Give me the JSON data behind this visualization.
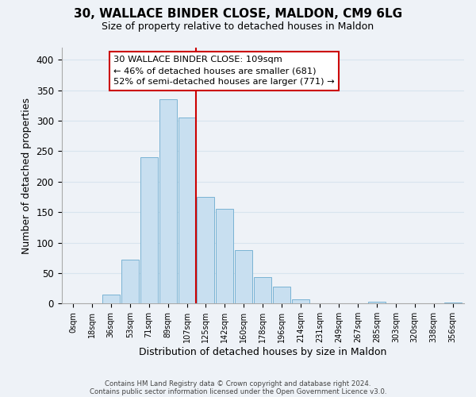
{
  "title": "30, WALLACE BINDER CLOSE, MALDON, CM9 6LG",
  "subtitle": "Size of property relative to detached houses in Maldon",
  "xlabel": "Distribution of detached houses by size in Maldon",
  "ylabel": "Number of detached properties",
  "bar_color": "#c8dff0",
  "bar_edge_color": "#7ab3d4",
  "categories": [
    "0sqm",
    "18sqm",
    "36sqm",
    "53sqm",
    "71sqm",
    "89sqm",
    "107sqm",
    "125sqm",
    "142sqm",
    "160sqm",
    "178sqm",
    "196sqm",
    "214sqm",
    "231sqm",
    "249sqm",
    "267sqm",
    "285sqm",
    "303sqm",
    "320sqm",
    "338sqm",
    "356sqm"
  ],
  "values": [
    0,
    0,
    15,
    72,
    240,
    335,
    305,
    175,
    155,
    88,
    44,
    28,
    7,
    0,
    0,
    0,
    3,
    0,
    0,
    0,
    2
  ],
  "ylim": [
    0,
    420
  ],
  "yticks": [
    0,
    50,
    100,
    150,
    200,
    250,
    300,
    350,
    400
  ],
  "annotation_title": "30 WALLACE BINDER CLOSE: 109sqm",
  "annotation_line1": "← 46% of detached houses are smaller (681)",
  "annotation_line2": "52% of semi-detached houses are larger (771) →",
  "highlight_bar_index": 6,
  "highlight_line_color": "#cc0000",
  "footer1": "Contains HM Land Registry data © Crown copyright and database right 2024.",
  "footer2": "Contains public sector information licensed under the Open Government Licence v3.0.",
  "background_color": "#eef2f7",
  "grid_color": "#d8e4ee"
}
